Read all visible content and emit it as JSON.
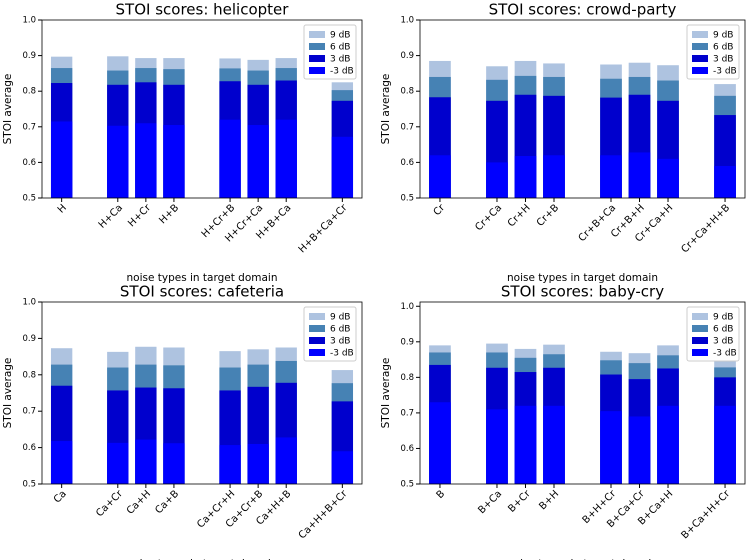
{
  "chart_data": [
    {
      "type": "bar",
      "title": "STOI scores: helicopter",
      "x_label": "noise types in target domain",
      "y_label": "STOI average",
      "categories": [
        "H",
        null,
        "H+Ca",
        "H+Cr",
        "H+B",
        null,
        "H+Cr+B",
        "H+Cr+Ca",
        "H+B+Ca",
        null,
        "H+B+Ca+Cr"
      ],
      "series": [
        {
          "name": "9 dB",
          "color": "#aec3e0",
          "values": [
            0.897,
            null,
            0.898,
            0.893,
            0.893,
            null,
            0.892,
            0.888,
            0.893,
            null,
            0.825
          ]
        },
        {
          "name": "6 dB",
          "color": "#4682b4",
          "values": [
            0.865,
            null,
            0.858,
            0.865,
            0.862,
            null,
            0.864,
            0.858,
            0.865,
            null,
            0.803
          ]
        },
        {
          "name": "3 dB",
          "color": "#0000cd",
          "values": [
            0.823,
            null,
            0.818,
            0.825,
            0.818,
            null,
            0.828,
            0.818,
            0.83,
            null,
            0.773
          ]
        },
        {
          "name": "-3 dB",
          "color": "#0000ff",
          "values": [
            0.715,
            null,
            0.703,
            0.71,
            0.705,
            null,
            0.72,
            0.705,
            0.72,
            null,
            0.672
          ]
        }
      ],
      "ylim": [
        0.5,
        1.0
      ],
      "yticks": [
        0.5,
        0.6,
        0.7,
        0.8,
        0.9,
        {
          "value": 1,
          "label": "1.0"
        }
      ],
      "legend": "upper right"
    },
    {
      "type": "bar",
      "title": "STOI scores: crowd-party",
      "x_label": "noise types in target domain",
      "y_label": "STOI average",
      "categories": [
        "Cr",
        null,
        "Cr+Ca",
        "Cr+H",
        "Cr+B",
        null,
        "Cr+B+Ca",
        "Cr+B+H",
        "Cr+Ca+H",
        null,
        "Cr+Ca+H+B"
      ],
      "series": [
        {
          "name": "9 dB",
          "color": "#aec3e0",
          "values": [
            0.885,
            null,
            0.87,
            0.885,
            0.878,
            null,
            0.875,
            0.88,
            0.873,
            null,
            0.82
          ]
        },
        {
          "name": "6 dB",
          "color": "#4682b4",
          "values": [
            0.84,
            null,
            0.832,
            0.843,
            0.84,
            null,
            0.835,
            0.84,
            0.83,
            null,
            0.787
          ]
        },
        {
          "name": "3 dB",
          "color": "#0000cd",
          "values": [
            0.783,
            null,
            0.773,
            0.79,
            0.787,
            null,
            0.782,
            0.79,
            0.773,
            null,
            0.733
          ]
        },
        {
          "name": "-3 dB",
          "color": "#0000ff",
          "values": [
            0.62,
            null,
            0.6,
            0.618,
            0.62,
            null,
            0.62,
            0.628,
            0.61,
            null,
            0.59
          ]
        }
      ],
      "ylim": [
        0.5,
        1.0
      ],
      "yticks": [
        0.5,
        0.6,
        0.7,
        0.8,
        0.9,
        {
          "value": 1,
          "label": "1.0"
        }
      ],
      "legend": "upper right"
    },
    {
      "type": "bar",
      "title": "STOI scores: cafeteria",
      "x_label": "noise types in target domain",
      "y_label": "STOI average",
      "categories": [
        "Ca",
        null,
        "Ca+Cr",
        "Ca+H",
        "Ca+B",
        null,
        "Ca+Cr+H",
        "Ca+Cr+B",
        "Ca+H+B",
        null,
        "Ca+H+B+Cr"
      ],
      "series": [
        {
          "name": "9 dB",
          "color": "#aec3e0",
          "values": [
            0.873,
            null,
            0.863,
            0.877,
            0.875,
            null,
            0.865,
            0.87,
            0.875,
            null,
            0.813
          ]
        },
        {
          "name": "6 dB",
          "color": "#4682b4",
          "values": [
            0.828,
            null,
            0.82,
            0.828,
            0.826,
            null,
            0.82,
            0.828,
            0.838,
            null,
            0.777
          ]
        },
        {
          "name": "3 dB",
          "color": "#0000cd",
          "values": [
            0.77,
            null,
            0.757,
            0.765,
            0.763,
            null,
            0.757,
            0.767,
            0.778,
            null,
            0.727
          ]
        },
        {
          "name": "-3 dB",
          "color": "#0000ff",
          "values": [
            0.618,
            null,
            0.613,
            0.622,
            0.612,
            null,
            0.607,
            0.61,
            0.628,
            null,
            0.59
          ]
        }
      ],
      "ylim": [
        0.5,
        1.0
      ],
      "yticks": [
        0.5,
        0.6,
        0.7,
        0.8,
        0.9,
        {
          "value": 1,
          "label": "1.0"
        }
      ],
      "legend": "upper right"
    },
    {
      "type": "bar",
      "title": "STOI scores: baby-cry",
      "x_label": "noise types in target domain",
      "y_label": "STOI average",
      "categories": [
        "B",
        null,
        "B+Ca",
        "B+Cr",
        "B+H",
        null,
        "B+H+Cr",
        "B+Ca+Cr",
        "B+Ca+H",
        null,
        "B+Ca+H+Cr"
      ],
      "series": [
        {
          "name": "9 dB",
          "color": "#aec3e0",
          "values": [
            0.89,
            null,
            0.895,
            0.88,
            0.892,
            null,
            0.872,
            0.868,
            0.89,
            null,
            0.845
          ]
        },
        {
          "name": "6 dB",
          "color": "#4682b4",
          "values": [
            0.87,
            null,
            0.87,
            0.855,
            0.865,
            null,
            0.848,
            0.84,
            0.862,
            null,
            0.828
          ]
        },
        {
          "name": "3 dB",
          "color": "#0000cd",
          "values": [
            0.835,
            null,
            0.827,
            0.815,
            0.827,
            null,
            0.808,
            0.795,
            0.825,
            null,
            0.8
          ]
        },
        {
          "name": "-3 dB",
          "color": "#0000ff",
          "values": [
            0.73,
            null,
            0.71,
            0.72,
            0.72,
            null,
            0.705,
            0.69,
            0.72,
            null,
            0.72
          ]
        }
      ],
      "ylim": [
        0.5,
        1.012
      ],
      "yticks": [
        0.5,
        0.6,
        0.7,
        0.8,
        0.9,
        {
          "value": 1,
          "label": "1.0"
        }
      ],
      "legend": "upper right"
    }
  ]
}
